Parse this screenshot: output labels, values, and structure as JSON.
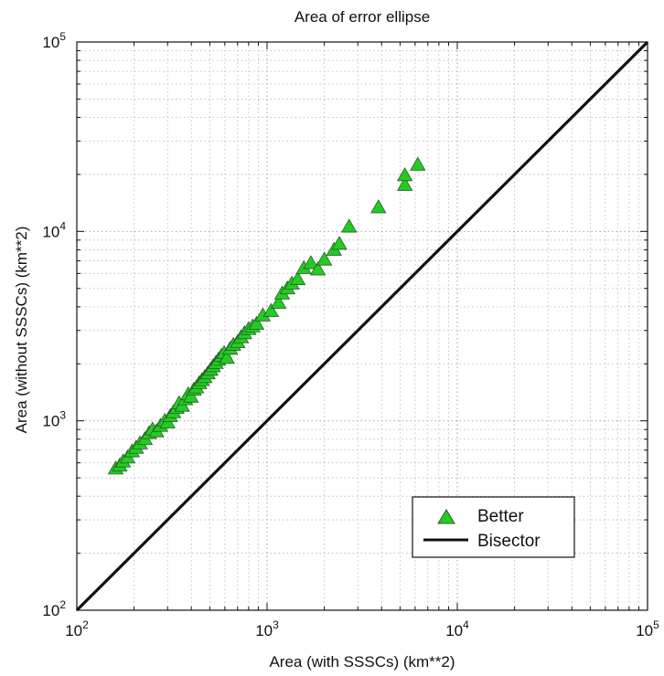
{
  "chart_data": {
    "type": "scatter",
    "title": "Area of error ellipse",
    "xlabel": "Area (with SSSCs) (km**2)",
    "ylabel": "Area (without SSSCs) (km**2)",
    "xscale": "log",
    "yscale": "log",
    "xlim": [
      100,
      100000
    ],
    "ylim": [
      100,
      100000
    ],
    "grid": true,
    "legend_position": "lower-right",
    "xticks": [
      {
        "base": "10",
        "exp": "2"
      },
      {
        "base": "10",
        "exp": "3"
      },
      {
        "base": "10",
        "exp": "4"
      },
      {
        "base": "10",
        "exp": "5"
      }
    ],
    "yticks": [
      {
        "base": "10",
        "exp": "2"
      },
      {
        "base": "10",
        "exp": "3"
      },
      {
        "base": "10",
        "exp": "4"
      },
      {
        "base": "10",
        "exp": "5"
      }
    ],
    "series": [
      {
        "name": "Better",
        "marker": "triangle",
        "color": "#22cc22",
        "points": [
          [
            160,
            560
          ],
          [
            168,
            580
          ],
          [
            175,
            610
          ],
          [
            185,
            640
          ],
          [
            195,
            690
          ],
          [
            205,
            720
          ],
          [
            215,
            760
          ],
          [
            228,
            800
          ],
          [
            240,
            860
          ],
          [
            250,
            900
          ],
          [
            262,
            880
          ],
          [
            275,
            940
          ],
          [
            290,
            1000
          ],
          [
            300,
            980
          ],
          [
            310,
            1060
          ],
          [
            322,
            1110
          ],
          [
            335,
            1170
          ],
          [
            345,
            1240
          ],
          [
            358,
            1200
          ],
          [
            372,
            1300
          ],
          [
            385,
            1380
          ],
          [
            398,
            1340
          ],
          [
            412,
            1460
          ],
          [
            425,
            1500
          ],
          [
            440,
            1580
          ],
          [
            455,
            1640
          ],
          [
            470,
            1700
          ],
          [
            488,
            1780
          ],
          [
            505,
            1860
          ],
          [
            520,
            1940
          ],
          [
            538,
            2020
          ],
          [
            555,
            2100
          ],
          [
            575,
            2200
          ],
          [
            595,
            2280
          ],
          [
            615,
            2150
          ],
          [
            640,
            2400
          ],
          [
            665,
            2520
          ],
          [
            700,
            2600
          ],
          [
            730,
            2760
          ],
          [
            760,
            2900
          ],
          [
            800,
            3050
          ],
          [
            840,
            3150
          ],
          [
            880,
            3250
          ],
          [
            950,
            3600
          ],
          [
            1050,
            3800
          ],
          [
            1150,
            4200
          ],
          [
            1200,
            4700
          ],
          [
            1280,
            5000
          ],
          [
            1350,
            5300
          ],
          [
            1450,
            5600
          ],
          [
            1560,
            6400
          ],
          [
            1700,
            6800
          ],
          [
            1850,
            6300
          ],
          [
            2000,
            7100
          ],
          [
            2250,
            8000
          ],
          [
            2400,
            8600
          ],
          [
            2700,
            10600
          ],
          [
            3850,
            13400
          ],
          [
            5300,
            17600
          ],
          [
            5300,
            19800
          ],
          [
            6200,
            22500
          ]
        ]
      },
      {
        "name": "Bisector",
        "type": "line",
        "color": "#111111",
        "points": [
          [
            100,
            100
          ],
          [
            100000,
            100000
          ]
        ]
      }
    ]
  }
}
